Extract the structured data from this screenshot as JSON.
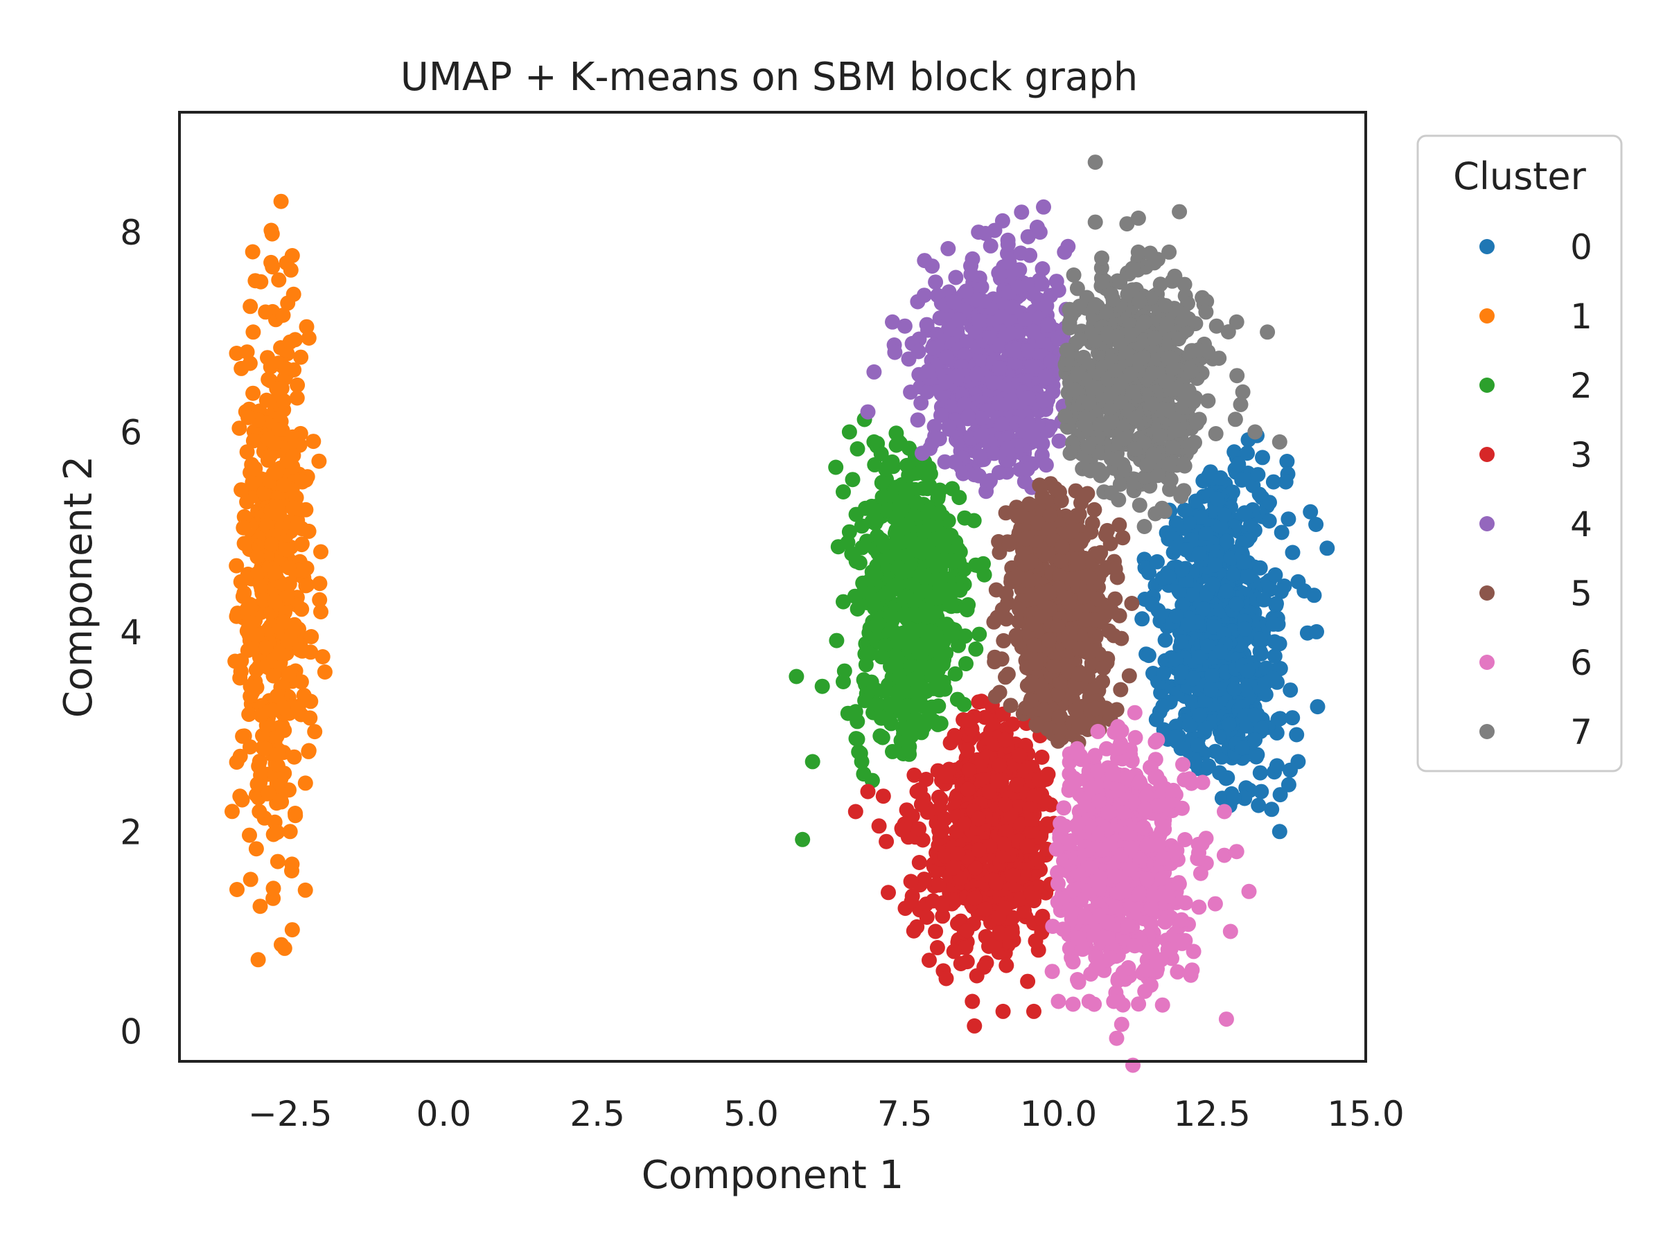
{
  "chart_data": {
    "type": "scatter",
    "title": "UMAP + K‑means on SBM block graph",
    "xlabel": "Component 1",
    "ylabel": "Component 2",
    "xlim": [
      -4.3,
      15.0
    ],
    "ylim": [
      -0.3,
      9.2
    ],
    "x_ticks": [
      -2.5,
      0.0,
      2.5,
      5.0,
      7.5,
      10.0,
      12.5,
      15.0
    ],
    "x_tick_labels": [
      "−2.5",
      "0.0",
      "2.5",
      "5.0",
      "7.5",
      "10.0",
      "12.5",
      "15.0"
    ],
    "y_ticks": [
      0,
      2,
      4,
      6,
      8
    ],
    "y_tick_labels": [
      "0",
      "2",
      "4",
      "6",
      "8"
    ],
    "grid": false,
    "legend": {
      "title": "Cluster",
      "placement": "outside-right",
      "entries": [
        "0",
        "1",
        "2",
        "3",
        "4",
        "5",
        "6",
        "7"
      ]
    },
    "series": [
      {
        "name": "0",
        "color": "#1f77b4",
        "cluster": {
          "center": [
            12.6,
            4.1
          ],
          "spread": [
            0.55,
            0.95
          ],
          "count": 700
        },
        "points": [
          [
            13.7,
            5.5
          ],
          [
            14.1,
            5.2
          ],
          [
            14.2,
            4.0
          ],
          [
            13.9,
            2.7
          ],
          [
            13.6,
            2.0
          ],
          [
            13.3,
            2.4
          ],
          [
            13.9,
            4.5
          ],
          [
            13.5,
            5.5
          ]
        ]
      },
      {
        "name": "1",
        "color": "#ff7f0e",
        "cluster": {
          "center": [
            -2.75,
            4.5
          ],
          "spread": [
            0.28,
            1.35
          ],
          "count": 500
        },
        "points": [
          [
            -3.1,
            7.0
          ],
          [
            -2.9,
            7.2
          ],
          [
            -3.2,
            6.8
          ],
          [
            -2.5,
            6.9
          ],
          [
            -2.3,
            5.5
          ],
          [
            -2.0,
            4.8
          ],
          [
            -2.0,
            4.2
          ],
          [
            -2.1,
            3.0
          ],
          [
            -3.3,
            4.5
          ],
          [
            -3.2,
            5.8
          ],
          [
            -2.7,
            1.7
          ],
          [
            -2.5,
            2.0
          ],
          [
            -3.0,
            2.2
          ],
          [
            -2.2,
            2.8
          ],
          [
            -3.3,
            3.6
          ]
        ]
      },
      {
        "name": "2",
        "color": "#2ca02c",
        "cluster": {
          "center": [
            7.6,
            4.3
          ],
          "spread": [
            0.45,
            0.85
          ],
          "count": 650
        },
        "points": [
          [
            6.6,
            6.0
          ],
          [
            7.0,
            5.9
          ],
          [
            6.5,
            5.4
          ],
          [
            6.6,
            5.0
          ],
          [
            6.5,
            4.3
          ],
          [
            6.5,
            3.5
          ],
          [
            6.0,
            2.7
          ],
          [
            6.8,
            2.7
          ],
          [
            7.3,
            2.8
          ],
          [
            6.7,
            3.2
          ]
        ]
      },
      {
        "name": "3",
        "color": "#d62728",
        "cluster": {
          "center": [
            8.9,
            2.0
          ],
          "spread": [
            0.55,
            0.6
          ],
          "count": 650
        },
        "points": [
          [
            6.7,
            2.2
          ],
          [
            6.9,
            2.4
          ],
          [
            7.2,
            1.9
          ],
          [
            7.6,
            1.5
          ],
          [
            8.0,
            1.0
          ],
          [
            8.6,
            0.3
          ],
          [
            9.1,
            0.2
          ],
          [
            9.6,
            0.2
          ],
          [
            9.5,
            0.5
          ],
          [
            8.3,
            0.8
          ],
          [
            7.7,
            2.4
          ]
        ]
      },
      {
        "name": "4",
        "color": "#9467bd",
        "cluster": {
          "center": [
            9.0,
            6.6
          ],
          "spread": [
            0.6,
            0.55
          ],
          "count": 650
        },
        "points": [
          [
            9.4,
            8.2
          ],
          [
            8.7,
            8.0
          ],
          [
            9.7,
            8.0
          ],
          [
            10.1,
            7.8
          ],
          [
            8.0,
            7.5
          ],
          [
            7.3,
            7.1
          ],
          [
            7.0,
            6.6
          ],
          [
            6.9,
            6.2
          ],
          [
            8.3,
            7.3
          ],
          [
            9.2,
            7.7
          ]
        ]
      },
      {
        "name": "5",
        "color": "#8c564b",
        "cluster": {
          "center": [
            10.0,
            4.2
          ],
          "spread": [
            0.45,
            0.7
          ],
          "count": 600
        },
        "points": []
      },
      {
        "name": "6",
        "color": "#e377c2",
        "cluster": {
          "center": [
            11.0,
            1.7
          ],
          "spread": [
            0.55,
            0.6
          ],
          "count": 650
        },
        "points": [
          [
            10.0,
            0.3
          ],
          [
            10.5,
            0.3
          ],
          [
            10.9,
            0.3
          ],
          [
            11.6,
            0.7
          ],
          [
            12.2,
            0.8
          ],
          [
            12.8,
            1.0
          ],
          [
            13.1,
            1.4
          ],
          [
            12.9,
            1.8
          ],
          [
            12.7,
            2.2
          ],
          [
            9.9,
            0.6
          ]
        ]
      },
      {
        "name": "7",
        "color": "#7f7f7f",
        "cluster": {
          "center": [
            11.2,
            6.5
          ],
          "spread": [
            0.6,
            0.55
          ],
          "count": 650
        },
        "points": [
          [
            10.6,
            8.7
          ],
          [
            10.6,
            8.1
          ],
          [
            11.3,
            7.8
          ],
          [
            11.8,
            7.8
          ],
          [
            12.4,
            7.2
          ],
          [
            12.9,
            7.1
          ],
          [
            13.4,
            7.0
          ],
          [
            13.2,
            6.0
          ],
          [
            13.6,
            5.9
          ],
          [
            13.0,
            6.4
          ],
          [
            11.0,
            7.5
          ]
        ]
      }
    ]
  }
}
